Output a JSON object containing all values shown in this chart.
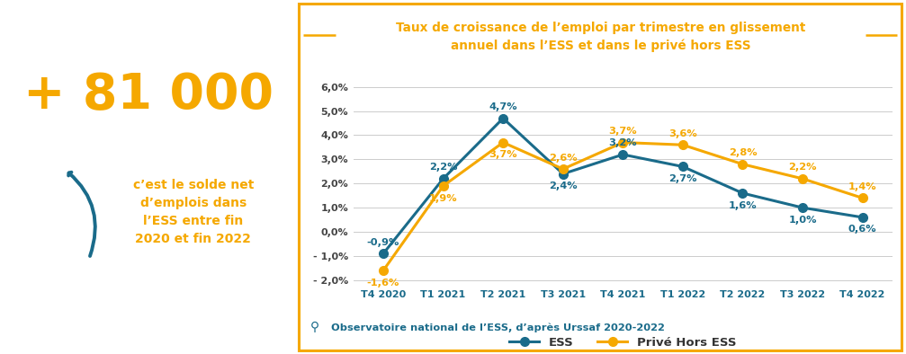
{
  "title_line1": "Taux de croissance de l’emploi par trimestre en glissement",
  "title_line2": "annuel dans l’ESS et dans le privé hors ESS",
  "title_color": "#F5A800",
  "ess_color": "#1A6B8A",
  "prive_color": "#F5A800",
  "bg_color": "#FFFFFF",
  "border_color": "#F5A800",
  "source_color": "#1A6B8A",
  "categories": [
    "T4 2020",
    "T1 2021",
    "T2 2021",
    "T3 2021",
    "T4 2021",
    "T1 2022",
    "T2 2022",
    "T3 2022",
    "T4 2022"
  ],
  "ess_values": [
    -0.9,
    2.2,
    4.7,
    2.4,
    3.2,
    2.7,
    1.6,
    1.0,
    0.6
  ],
  "prive_values": [
    -1.6,
    1.9,
    3.7,
    2.6,
    3.7,
    3.6,
    2.8,
    2.2,
    1.4
  ],
  "ess_labels": [
    "-0,9%",
    "2,2%",
    "4,7%",
    "2,4%",
    "3,2%",
    "2,7%",
    "1,6%",
    "1,0%",
    "0,6%"
  ],
  "prive_labels": [
    "-1,6%",
    "1,9%",
    "3,7%",
    "2,6%",
    "3,7%",
    "3,6%",
    "2,8%",
    "2,2%",
    "1,4%"
  ],
  "ylim": [
    -2.2,
    6.3
  ],
  "yticks": [
    -2.0,
    -1.0,
    0.0,
    1.0,
    2.0,
    3.0,
    4.0,
    5.0,
    6.0
  ],
  "ytick_labels": [
    "- 2,0%",
    "- 1,0%",
    "0,0%",
    "1,0%",
    "2,0%",
    "3,0%",
    "4,0%",
    "5,0%",
    "6,0%"
  ],
  "legend_ess": "ESS",
  "legend_prive": "Privé Hors ESS",
  "source_text": "Observatoire national de l’ESS, d’après Urssaf 2020-2022",
  "big_number": "+ 81 000",
  "big_number_color": "#F5A800",
  "subtitle_line1": "c’est le solde net",
  "subtitle_line2": "d’emplois dans",
  "subtitle_line3": "l’ESS entre fin",
  "subtitle_line4": "2020 et fin 2022",
  "subtitle_color": "#F5A800",
  "arrow_color": "#1A6B8A",
  "label_offsets_ess_y": [
    0.28,
    0.28,
    0.28,
    -0.32,
    0.28,
    -0.32,
    -0.32,
    -0.32,
    -0.32
  ],
  "label_offsets_prive_y": [
    -0.32,
    -0.32,
    -0.32,
    0.28,
    0.28,
    0.28,
    0.28,
    0.28,
    0.28
  ]
}
